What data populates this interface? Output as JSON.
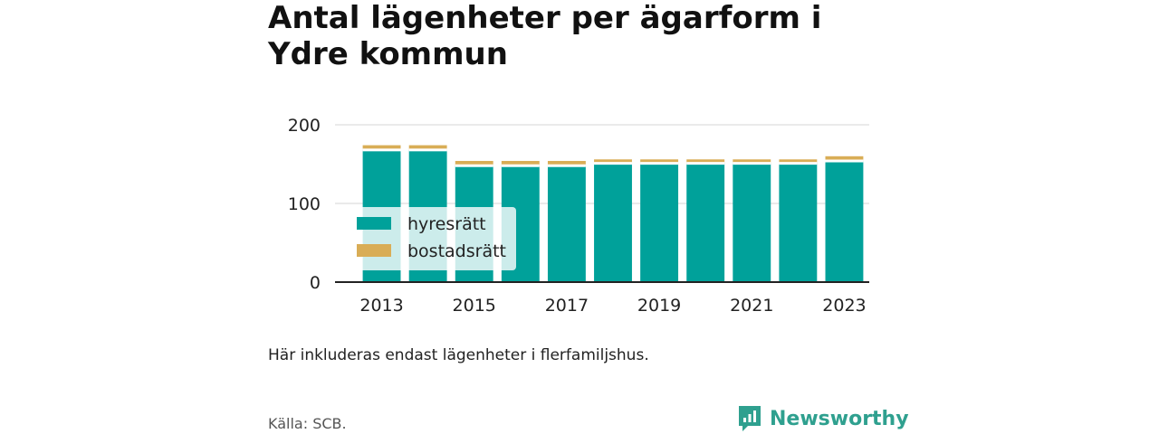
{
  "title": "Antal lägenheter per ägarform i Ydre kommun",
  "note": "Här inkluderas endast lägenheter i flerfamiljshus.",
  "source": "Källa: SCB.",
  "brand": {
    "name": "Newsworthy",
    "color": "#2fa08f"
  },
  "chart_data": {
    "type": "bar",
    "stacked": true,
    "title": "Antal lägenheter per ägarform i Ydre kommun",
    "x": [
      2013,
      2014,
      2015,
      2016,
      2017,
      2018,
      2019,
      2020,
      2021,
      2022,
      2023
    ],
    "x_tick_labels": [
      "2013",
      "2015",
      "2017",
      "2019",
      "2021",
      "2023"
    ],
    "ylim": [
      0,
      200
    ],
    "y_ticks": [
      0,
      100,
      200
    ],
    "grid": true,
    "legend_position": "lower-left",
    "series": [
      {
        "name": "hyresrätt",
        "color": "#00a19a",
        "values": [
          168,
          168,
          148,
          148,
          148,
          151,
          151,
          151,
          151,
          151,
          154
        ]
      },
      {
        "name": "bostadsrätt",
        "color": "#d9ad56",
        "values": [
          6,
          6,
          6,
          6,
          6,
          5,
          5,
          5,
          5,
          5,
          6
        ]
      }
    ]
  }
}
